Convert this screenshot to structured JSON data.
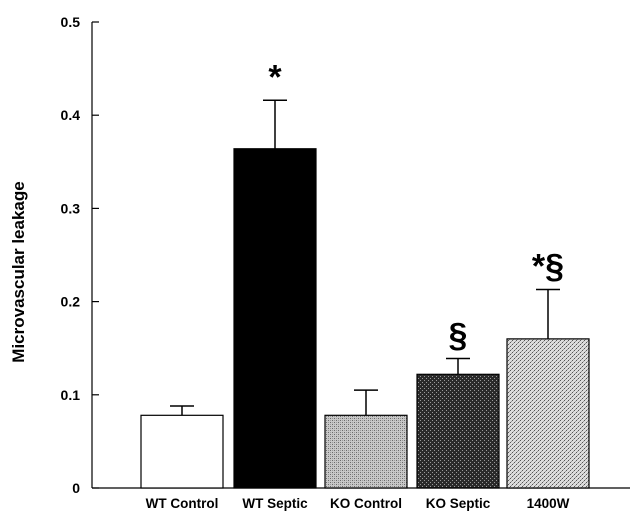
{
  "chart_data": {
    "type": "bar",
    "ylabel": "Microvascular leakage",
    "xlabel": "",
    "ylim": [
      0,
      0.5
    ],
    "yticks": [
      "0",
      "0.1",
      "0.2",
      "0.3",
      "0.4",
      "0.5"
    ],
    "grid": false,
    "categories": [
      "WT Control",
      "WT Septic",
      "KO Control",
      "KO Septic",
      "1400W"
    ],
    "values": [
      0.078,
      0.364,
      0.078,
      0.122,
      0.16
    ],
    "errors": [
      0.01,
      0.052,
      0.027,
      0.017,
      0.053
    ],
    "fills": [
      "white",
      "black",
      "pattern-light",
      "pattern-dark",
      "pattern-fine"
    ],
    "annotations": [
      "",
      "*",
      "",
      "§",
      "*§"
    ]
  }
}
